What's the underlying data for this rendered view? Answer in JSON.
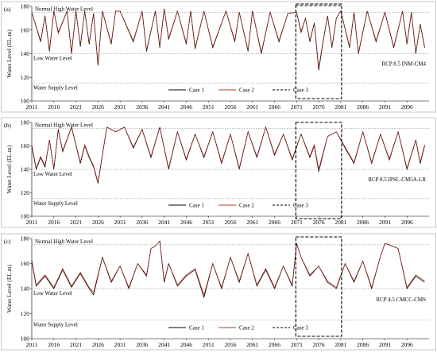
{
  "chart_data": [
    {
      "type": "line",
      "panel_label": "(a)",
      "scenario": "RCP 8.5 INM-CM4",
      "ylabel": "Water Level (EL.m)",
      "xlim": [
        2011,
        2101
      ],
      "ylim": [
        100,
        180
      ],
      "x_ticks": [
        "2011",
        "2016",
        "2021",
        "2026",
        "2031",
        "2036",
        "2041",
        "2046",
        "2051",
        "2056",
        "2061",
        "2066",
        "2071",
        "2076",
        "2081",
        "2086",
        "2091",
        "2096"
      ],
      "y_ticks": [
        "100",
        "120",
        "140",
        "160",
        "180"
      ],
      "reference_lines": [
        {
          "label": "Normal High Water Level",
          "value": 175
        },
        {
          "label": "Low Water Level",
          "value": 140
        },
        {
          "label": "Water Supply Level",
          "value": 115
        }
      ],
      "highlight": {
        "x_start": 2071,
        "x_end": 2081
      },
      "legend": [
        "Case 1",
        "Case 2",
        "Case 3"
      ],
      "series_colors": [
        "#000000",
        "#c0392b",
        "#000000"
      ],
      "x": [
        2011,
        2013,
        2014,
        2015,
        2016,
        2017,
        2019,
        2020,
        2021,
        2022,
        2023,
        2024,
        2025,
        2026,
        2027,
        2029,
        2030,
        2031,
        2034,
        2036,
        2037,
        2039,
        2040,
        2041,
        2042,
        2044,
        2046,
        2047,
        2048,
        2050,
        2052,
        2055,
        2057,
        2058,
        2060,
        2061,
        2063,
        2065,
        2067,
        2069,
        2071,
        2072,
        2073,
        2074,
        2075,
        2076,
        2077,
        2078,
        2079,
        2080,
        2081,
        2083,
        2084,
        2085,
        2087,
        2089,
        2091,
        2093,
        2095,
        2096,
        2097,
        2098,
        2099,
        2100
      ],
      "series": [
        {
          "name": "Case 1",
          "values": [
            175,
            150,
            172,
            142,
            176,
            158,
            176,
            140,
            176,
            146,
            176,
            148,
            174,
            130,
            176,
            148,
            176,
            176,
            150,
            176,
            142,
            176,
            145,
            178,
            152,
            176,
            148,
            176,
            144,
            176,
            145,
            176,
            150,
            175,
            142,
            176,
            140,
            175,
            150,
            174,
            175,
            158,
            170,
            150,
            166,
            126,
            150,
            172,
            145,
            170,
            176,
            145,
            175,
            140,
            176,
            150,
            175,
            145,
            176,
            148,
            175,
            140,
            165,
            145
          ]
        },
        {
          "name": "Case 2",
          "values": [
            175,
            151,
            172,
            143,
            176,
            157,
            176,
            141,
            176,
            147,
            176,
            149,
            174,
            131,
            176,
            149,
            176,
            176,
            151,
            176,
            143,
            176,
            146,
            178,
            153,
            176,
            149,
            176,
            145,
            176,
            146,
            176,
            151,
            175,
            143,
            176,
            141,
            175,
            151,
            174,
            175,
            159,
            170,
            151,
            166,
            128,
            151,
            172,
            146,
            170,
            176,
            146,
            175,
            141,
            176,
            151,
            175,
            146,
            176,
            149,
            175,
            141,
            165,
            146
          ]
        },
        {
          "name": "Case 3",
          "values": [
            175,
            150,
            172,
            142,
            176,
            158,
            176,
            140,
            176,
            146,
            176,
            148,
            174,
            130,
            176,
            148,
            176,
            176,
            150,
            176,
            142,
            176,
            145,
            178,
            152,
            176,
            148,
            176,
            144,
            176,
            145,
            176,
            150,
            175,
            142,
            176,
            140,
            175,
            150,
            174,
            175,
            158,
            170,
            150,
            166,
            126,
            150,
            172,
            145,
            170,
            176,
            145,
            175,
            140,
            176,
            150,
            175,
            145,
            176,
            148,
            175,
            140,
            165,
            145
          ]
        }
      ]
    },
    {
      "type": "line",
      "panel_label": "(b)",
      "scenario": "RCP 8.5 IPSL-CM5A-LR",
      "ylabel": "Water Level (EL.m)",
      "xlim": [
        2011,
        2101
      ],
      "ylim": [
        100,
        180
      ],
      "x_ticks": [
        "2011",
        "2016",
        "2021",
        "2026",
        "2031",
        "2036",
        "2041",
        "2046",
        "2051",
        "2056",
        "2061",
        "2066",
        "2071",
        "2076",
        "2081",
        "2086",
        "2091",
        "2096"
      ],
      "y_ticks": [
        "100",
        "120",
        "140",
        "160",
        "180"
      ],
      "reference_lines": [
        {
          "label": "Normal High Water Level",
          "value": 175
        },
        {
          "label": "Low Water Level",
          "value": 140
        },
        {
          "label": "Water Supply Level",
          "value": 115
        }
      ],
      "highlight": {
        "x_start": 2071,
        "x_end": 2081
      },
      "legend": [
        "Case 1",
        "Case 2",
        "Case 3"
      ],
      "series_colors": [
        "#000000",
        "#c0392b",
        "#000000"
      ],
      "x": [
        2011,
        2012,
        2013,
        2014,
        2015,
        2016,
        2017,
        2018,
        2020,
        2022,
        2023,
        2024,
        2025,
        2026,
        2028,
        2030,
        2032,
        2034,
        2036,
        2038,
        2040,
        2042,
        2044,
        2046,
        2048,
        2050,
        2052,
        2054,
        2056,
        2058,
        2060,
        2062,
        2064,
        2066,
        2068,
        2070,
        2072,
        2074,
        2075,
        2076,
        2078,
        2080,
        2082,
        2084,
        2086,
        2088,
        2090,
        2092,
        2094,
        2096,
        2098,
        2099,
        2100
      ],
      "series": [
        {
          "name": "Case 1",
          "values": [
            160,
            140,
            150,
            142,
            165,
            140,
            174,
            155,
            176,
            145,
            160,
            150,
            142,
            128,
            176,
            172,
            176,
            158,
            174,
            150,
            176,
            140,
            172,
            148,
            170,
            150,
            172,
            145,
            170,
            140,
            172,
            150,
            176,
            152,
            170,
            148,
            170,
            150,
            160,
            138,
            168,
            172,
            158,
            145,
            172,
            145,
            170,
            148,
            172,
            140,
            165,
            145,
            160
          ]
        },
        {
          "name": "Case 2",
          "values": [
            161,
            141,
            151,
            143,
            165,
            141,
            174,
            156,
            176,
            146,
            161,
            151,
            143,
            129,
            176,
            172,
            176,
            159,
            174,
            151,
            176,
            141,
            172,
            149,
            170,
            151,
            172,
            146,
            170,
            141,
            172,
            151,
            176,
            153,
            170,
            149,
            170,
            151,
            161,
            140,
            168,
            172,
            159,
            146,
            172,
            146,
            170,
            149,
            172,
            141,
            165,
            146,
            161
          ]
        },
        {
          "name": "Case 3",
          "values": [
            160,
            140,
            150,
            142,
            165,
            140,
            174,
            155,
            176,
            145,
            160,
            150,
            142,
            128,
            176,
            172,
            176,
            158,
            174,
            150,
            176,
            140,
            172,
            148,
            170,
            150,
            172,
            145,
            170,
            140,
            172,
            150,
            176,
            152,
            170,
            148,
            170,
            150,
            160,
            138,
            168,
            172,
            158,
            145,
            172,
            145,
            170,
            148,
            172,
            140,
            165,
            145,
            160
          ]
        }
      ]
    },
    {
      "type": "line",
      "panel_label": "(c)",
      "scenario": "RCP 4.5 CMCC-CMS",
      "ylabel": "Water Level (EL.m)",
      "xlim": [
        2011,
        2101
      ],
      "ylim": [
        100,
        180
      ],
      "x_ticks": [
        "2011",
        "2016",
        "2021",
        "2026",
        "2031",
        "2036",
        "2041",
        "2046",
        "2051",
        "2056",
        "2061",
        "2066",
        "2071",
        "2076",
        "2081",
        "2086",
        "2091",
        "2096"
      ],
      "y_ticks": [
        "100",
        "120",
        "140",
        "160",
        "180"
      ],
      "reference_lines": [
        {
          "label": "Normal High Water Level",
          "value": 175
        },
        {
          "label": "Low Water Level",
          "value": 140
        },
        {
          "label": "Water Supply Level",
          "value": 115
        }
      ],
      "highlight": {
        "x_start": 2071,
        "x_end": 2081
      },
      "legend": [
        "Case 1",
        "Case 2",
        "Case 3"
      ],
      "series_colors": [
        "#000000",
        "#c0392b",
        "#000000"
      ],
      "x": [
        2011,
        2012,
        2014,
        2016,
        2018,
        2020,
        2022,
        2024,
        2025,
        2027,
        2029,
        2031,
        2033,
        2035,
        2037,
        2038,
        2039,
        2040,
        2041,
        2042,
        2044,
        2046,
        2048,
        2050,
        2052,
        2054,
        2056,
        2058,
        2060,
        2062,
        2064,
        2066,
        2068,
        2070,
        2071,
        2072,
        2074,
        2076,
        2078,
        2080,
        2082,
        2084,
        2086,
        2088,
        2090,
        2091,
        2092,
        2094,
        2096,
        2098,
        2100
      ],
      "series": [
        {
          "name": "Case 1",
          "values": [
            162,
            142,
            150,
            140,
            155,
            141,
            152,
            140,
            135,
            165,
            145,
            158,
            140,
            160,
            150,
            172,
            174,
            178,
            145,
            160,
            142,
            150,
            155,
            133,
            160,
            140,
            165,
            145,
            168,
            142,
            155,
            140,
            158,
            142,
            176,
            165,
            150,
            158,
            145,
            140,
            160,
            145,
            162,
            140,
            166,
            176,
            175,
            172,
            140,
            150,
            145
          ]
        },
        {
          "name": "Case 2",
          "values": [
            163,
            143,
            151,
            141,
            156,
            142,
            153,
            141,
            137,
            165,
            146,
            158,
            141,
            160,
            151,
            172,
            174,
            178,
            146,
            160,
            143,
            151,
            156,
            135,
            160,
            141,
            165,
            146,
            168,
            143,
            156,
            141,
            158,
            143,
            176,
            165,
            151,
            158,
            146,
            141,
            160,
            146,
            162,
            141,
            166,
            176,
            175,
            172,
            141,
            151,
            146
          ]
        },
        {
          "name": "Case 3",
          "values": [
            162,
            142,
            150,
            140,
            155,
            141,
            152,
            140,
            135,
            165,
            145,
            158,
            140,
            160,
            150,
            172,
            174,
            178,
            145,
            160,
            142,
            150,
            155,
            133,
            160,
            140,
            165,
            145,
            168,
            142,
            155,
            140,
            158,
            142,
            176,
            165,
            150,
            158,
            145,
            140,
            160,
            145,
            162,
            140,
            166,
            176,
            175,
            172,
            140,
            150,
            145
          ]
        }
      ]
    }
  ]
}
